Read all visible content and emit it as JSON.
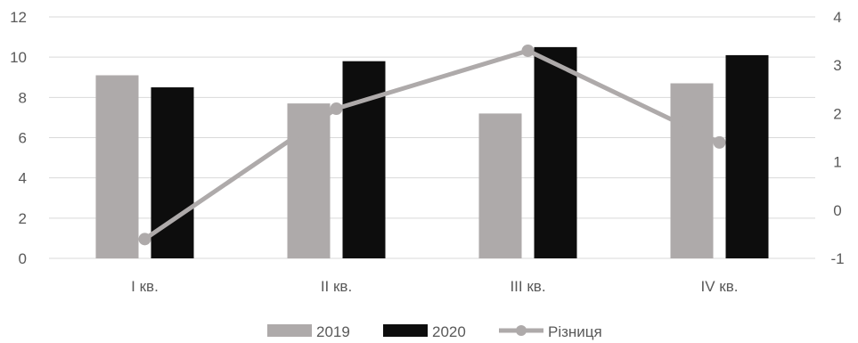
{
  "chart_data": {
    "type": "bar",
    "categories": [
      "I кв.",
      "II кв.",
      "III кв.",
      "IV кв."
    ],
    "series": [
      {
        "name": "2019",
        "type": "bar",
        "axis": "left",
        "color": "#aeaaaa",
        "values": [
          9.1,
          7.7,
          7.2,
          8.7
        ]
      },
      {
        "name": "2020",
        "type": "bar",
        "axis": "left",
        "color": "#0d0d0d",
        "values": [
          8.5,
          9.8,
          10.5,
          10.1
        ]
      },
      {
        "name": "Різниця",
        "type": "line",
        "axis": "right",
        "color": "#aeaaaa",
        "values": [
          -0.6,
          2.1,
          3.3,
          1.4
        ]
      }
    ],
    "y_left": {
      "min": 0,
      "max": 12,
      "ticks": [
        "0",
        "2",
        "4",
        "6",
        "8",
        "10",
        "12"
      ]
    },
    "y_right": {
      "min": -1,
      "max": 4,
      "ticks": [
        "-1",
        "0",
        "1",
        "2",
        "3",
        "4"
      ]
    },
    "grid": true,
    "legend_position": "bottom"
  }
}
